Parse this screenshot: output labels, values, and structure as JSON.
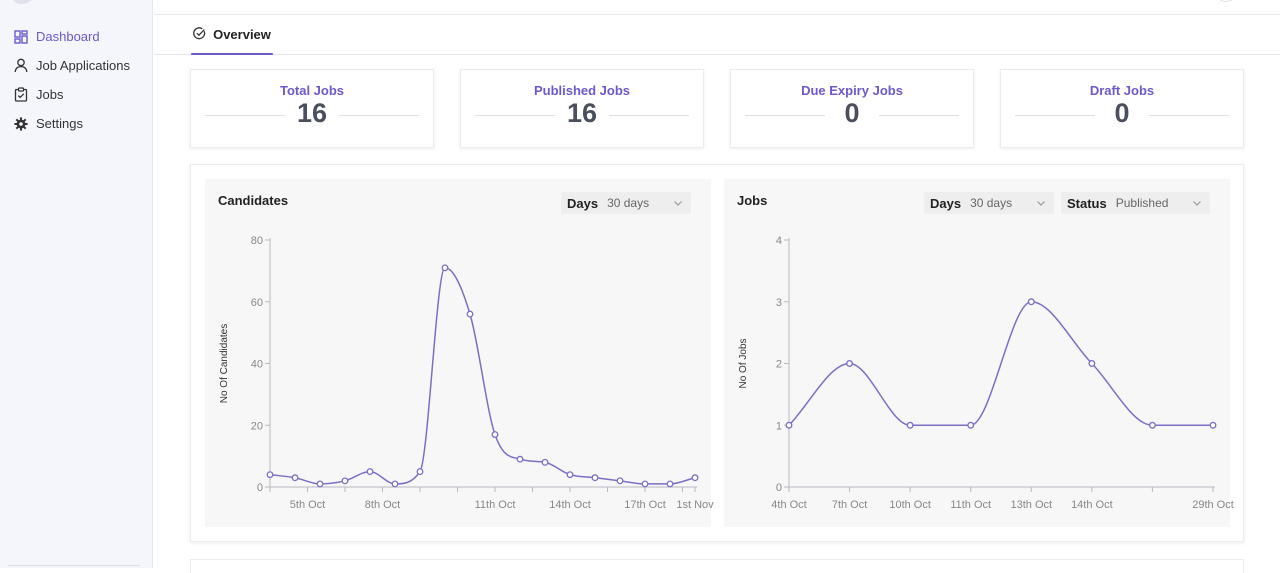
{
  "sidebar": {
    "items": [
      {
        "label": "Dashboard",
        "icon": "dashboard-icon",
        "active": true
      },
      {
        "label": "Job Applications",
        "icon": "user-icon",
        "active": false
      },
      {
        "label": "Jobs",
        "icon": "clipboard-check-icon",
        "active": false
      },
      {
        "label": "Settings",
        "icon": "gear-icon",
        "active": false
      }
    ]
  },
  "tabs": [
    {
      "label": "Overview",
      "icon": "check-circle-icon",
      "active": true
    }
  ],
  "stats": [
    {
      "title": "Total Jobs",
      "value": "16"
    },
    {
      "title": "Published Jobs",
      "value": "16"
    },
    {
      "title": "Due Expiry Jobs",
      "value": "0"
    },
    {
      "title": "Draft Jobs",
      "value": "0"
    }
  ],
  "candidates_panel": {
    "title": "Candidates",
    "days_label": "Days",
    "days_value": "30 days"
  },
  "jobs_panel": {
    "title": "Jobs",
    "days_label": "Days",
    "days_value": "30 days",
    "status_label": "Status",
    "status_value": "Published"
  },
  "colors": {
    "accent": "#6a5acd",
    "line": "#7b6fc4",
    "stat_value": "#4a4f5c",
    "panel_bg": "#f7f7f7"
  },
  "chart_data": [
    {
      "type": "line",
      "ylabel": "No Of Candidates",
      "ylim": [
        0,
        80
      ],
      "yticks": [
        0,
        20,
        40,
        60,
        80
      ],
      "x_tick_labels": [
        "",
        "5th Oct",
        "",
        "8th Oct",
        "",
        "",
        "11th Oct",
        "",
        "14th Oct",
        "",
        "17th Oct",
        "",
        "1st Nov"
      ],
      "values": [
        4,
        3,
        1,
        2,
        5,
        1,
        5,
        71,
        56,
        17,
        9,
        8,
        4,
        3,
        2,
        1,
        1,
        3
      ],
      "grid": false
    },
    {
      "type": "line",
      "ylabel": "No Of Jobs",
      "ylim": [
        0,
        4
      ],
      "yticks": [
        0,
        1,
        2,
        3,
        4
      ],
      "x_tick_labels": [
        "4th Oct",
        "7th Oct",
        "10th Oct",
        "11th Oct",
        "13th Oct",
        "14th Oct",
        "",
        "29th Oct"
      ],
      "values": [
        1,
        2,
        1,
        1,
        3,
        2,
        1,
        1
      ],
      "grid": false
    }
  ]
}
